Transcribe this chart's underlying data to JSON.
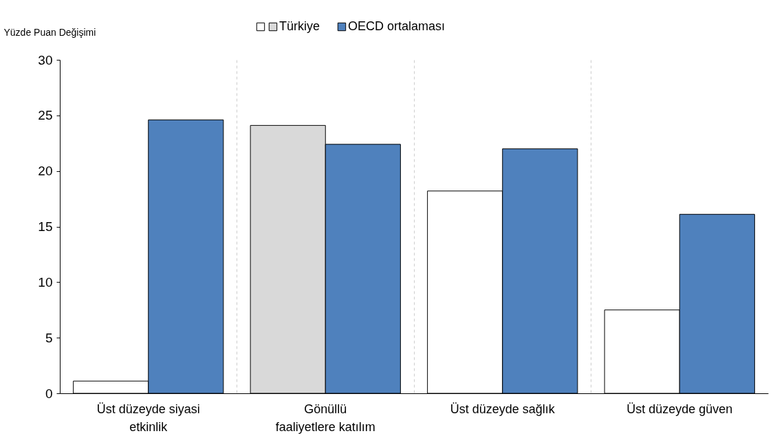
{
  "chart_data": {
    "type": "bar",
    "ylabel": "Yüzde Puan Değişimi",
    "categories": [
      "Üst düzeyde siyasi\netkinlik",
      "Gönüllü\nfaaliyetlere katılım",
      "Üst düzeyde sağlık",
      "Üst düzeyde güven"
    ],
    "series": [
      {
        "name": "Türkiye",
        "colors": [
          "#ffffff",
          "#d9d9d9",
          "#ffffff",
          "#ffffff"
        ],
        "values": [
          1.1,
          24.1,
          18.2,
          7.5
        ]
      },
      {
        "name": "OECD ortalaması",
        "color": "#4f81bd",
        "values": [
          24.6,
          22.4,
          22.0,
          16.1
        ]
      }
    ],
    "ylim": [
      0,
      30
    ],
    "yticks": [
      0,
      5,
      10,
      15,
      20,
      25,
      30
    ],
    "grid": "x",
    "legend": "top"
  }
}
